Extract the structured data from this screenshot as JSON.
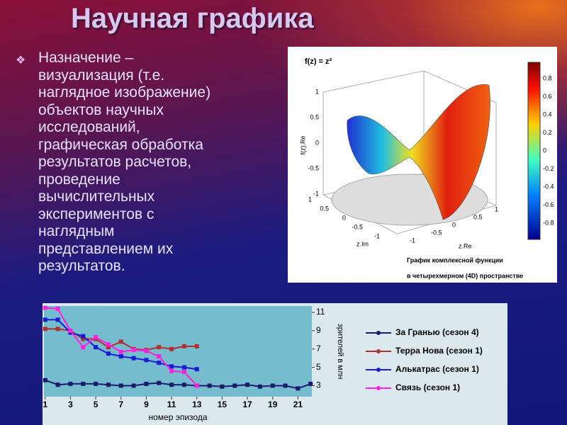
{
  "slide": {
    "title": "Научная графика",
    "bullet_lines": [
      "Назначение –",
      "визуализация (т.е.",
      "наглядное изображение)",
      "объектов научных",
      "исследований,",
      "графическая обработка",
      "результатов расчетов,",
      "проведение",
      "вычислительных",
      "экспериментов с",
      "наглядным",
      "представлением их",
      "результатов."
    ]
  },
  "surface_figure": {
    "formula": "f(z) = z²",
    "vertical_label": "f(z).Re",
    "zim_label": "z.Im",
    "zre_label": "z.Re",
    "vertical_ticks": [
      1,
      0.5,
      0,
      -0.5,
      -1
    ],
    "zim_ticks": [
      1,
      0.5,
      0,
      -0.5,
      -1
    ],
    "zre_ticks": [
      -1,
      -0.5,
      0,
      0.5,
      1
    ],
    "colorbar_ticks": [
      0.8,
      0.6,
      0.4,
      0.2,
      0,
      -0.2,
      -0.4,
      -0.6,
      -0.8
    ],
    "caption_lines": [
      "График  комплексной функции",
      "в четырехмерном (4D) пространстве"
    ]
  },
  "chart_data": {
    "type": "line",
    "xlabel": "номер эпизода",
    "ylabel": "зрителей в млн",
    "x": [
      1,
      2,
      3,
      4,
      5,
      6,
      7,
      8,
      9,
      10,
      11,
      12,
      13,
      14,
      15,
      16,
      17,
      18,
      19,
      20,
      21,
      22
    ],
    "series": [
      {
        "name": "За Гранью (сезон 4)",
        "color": "#1a1a6e",
        "values": [
          3.6,
          3.1,
          3.2,
          3.2,
          3.2,
          3.1,
          3.0,
          3.0,
          3.2,
          3.3,
          3.1,
          3.1,
          3.0,
          3.0,
          2.9,
          3.0,
          3.1,
          2.9,
          3.0,
          3.0,
          2.7,
          3.2
        ]
      },
      {
        "name": "Терра Нова (сезон 1)",
        "color": "#b03030",
        "values": [
          9.2,
          9.2,
          9.0,
          8.1,
          8.1,
          7.2,
          7.8,
          7.0,
          6.9,
          7.2,
          7.0,
          7.3,
          7.3,
          null,
          null,
          null,
          null,
          null,
          null,
          null,
          null,
          null
        ]
      },
      {
        "name": "Алькатрас (сезон 1)",
        "color": "#1a1ad0",
        "values": [
          10.2,
          10.2,
          8.8,
          8.4,
          7.2,
          6.5,
          6.2,
          6.0,
          5.8,
          5.5,
          5.1,
          5.0,
          4.8,
          null,
          null,
          null,
          null,
          null,
          null,
          null,
          null,
          null
        ]
      },
      {
        "name": "Связь (сезон 1)",
        "color": "#ff20e0",
        "values": [
          11.5,
          11.4,
          9.0,
          7.2,
          8.3,
          7.5,
          6.7,
          6.9,
          6.8,
          6.2,
          4.6,
          4.5,
          3.0,
          null,
          null,
          null,
          null,
          null,
          null,
          null,
          null,
          null
        ]
      }
    ],
    "xlim": [
      0.9,
      22.1
    ],
    "ylim": [
      1.8,
      11.7
    ],
    "xticks": [
      1,
      3,
      5,
      7,
      9,
      11,
      13,
      15,
      17,
      19,
      21
    ],
    "yticks": [
      3,
      5,
      7,
      9,
      11
    ]
  }
}
